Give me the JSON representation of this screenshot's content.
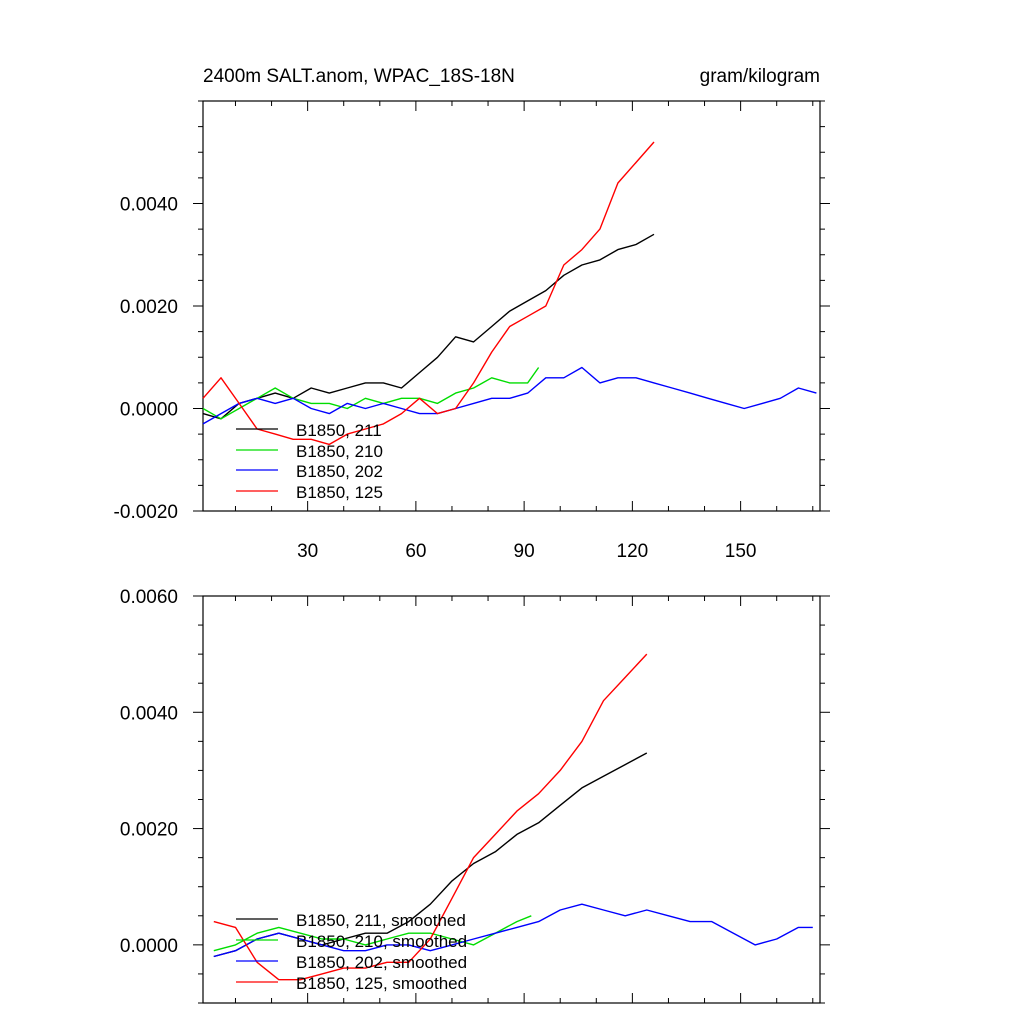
{
  "chart_data": [
    {
      "type": "line",
      "title": "2400m SALT.anom, WPAC_18S-18N",
      "units": "gram/kilogram",
      "xlim": [
        1,
        172
      ],
      "ylim": [
        -0.002,
        0.006
      ],
      "xticks": [
        30,
        60,
        90,
        120,
        150
      ],
      "yticks": [
        -0.002,
        0.0,
        0.002,
        0.004
      ],
      "ytick_labels": [
        "-0.0020",
        "0.0000",
        "0.0020",
        "0.0040"
      ],
      "legend": [
        "B1850, 211",
        "B1850, 210",
        "B1850, 202",
        "B1850, 125"
      ],
      "series": [
        {
          "name": "B1850, 211",
          "color": "#000000",
          "x_step": 5,
          "x": [
            1,
            6,
            11,
            16,
            21,
            26,
            31,
            36,
            41,
            46,
            51,
            56,
            61,
            66,
            71,
            76,
            81,
            86,
            91,
            96,
            101,
            106,
            111,
            116,
            121,
            126
          ],
          "values": [
            -0.0001,
            -0.0002,
            0.0001,
            0.0002,
            0.0003,
            0.0002,
            0.0004,
            0.0003,
            0.0004,
            0.0005,
            0.0005,
            0.0004,
            0.0007,
            0.001,
            0.0014,
            0.0013,
            0.0016,
            0.0019,
            0.0021,
            0.0023,
            0.0026,
            0.0028,
            0.0029,
            0.0031,
            0.0032,
            0.0034
          ]
        },
        {
          "name": "B1850, 210",
          "color": "#00dd00",
          "x": [
            1,
            6,
            11,
            16,
            21,
            26,
            31,
            36,
            41,
            46,
            51,
            56,
            61,
            66,
            71,
            76,
            81,
            86,
            91,
            94
          ],
          "values": [
            0.0,
            -0.0002,
            0.0,
            0.0002,
            0.0004,
            0.0002,
            0.0001,
            0.0001,
            0.0,
            0.0002,
            0.0001,
            0.0002,
            0.0002,
            0.0001,
            0.0003,
            0.0004,
            0.0006,
            0.0005,
            0.0005,
            0.0008
          ]
        },
        {
          "name": "B1850, 202",
          "color": "#0000ff",
          "x": [
            1,
            6,
            11,
            16,
            21,
            26,
            31,
            36,
            41,
            46,
            51,
            56,
            61,
            66,
            71,
            76,
            81,
            86,
            91,
            96,
            101,
            106,
            111,
            116,
            121,
            126,
            131,
            136,
            141,
            146,
            151,
            156,
            161,
            166,
            171
          ],
          "values": [
            -0.0003,
            -0.0001,
            0.0001,
            0.0002,
            0.0001,
            0.0002,
            0.0,
            -0.0001,
            0.0001,
            0.0,
            0.0001,
            0.0,
            -0.0001,
            -0.0001,
            0.0,
            0.0001,
            0.0002,
            0.0002,
            0.0003,
            0.0006,
            0.0006,
            0.0008,
            0.0005,
            0.0006,
            0.0006,
            0.0005,
            0.0004,
            0.0003,
            0.0002,
            0.0001,
            0.0,
            0.0001,
            0.0002,
            0.0004,
            0.0003
          ]
        },
        {
          "name": "B1850, 125",
          "color": "#ff0000",
          "x": [
            1,
            6,
            11,
            16,
            21,
            26,
            31,
            36,
            41,
            46,
            51,
            56,
            61,
            66,
            71,
            76,
            81,
            86,
            91,
            96,
            101,
            106,
            111,
            116,
            121,
            126
          ],
          "values": [
            0.0002,
            0.0006,
            0.0001,
            -0.0004,
            -0.0005,
            -0.0006,
            -0.0006,
            -0.0007,
            -0.0005,
            -0.0004,
            -0.0003,
            -0.0001,
            0.0002,
            -0.0001,
            0.0,
            0.0005,
            0.0011,
            0.0016,
            0.0018,
            0.002,
            0.0028,
            0.0031,
            0.0035,
            0.0044,
            0.0048,
            0.0052
          ]
        }
      ]
    },
    {
      "type": "line",
      "title": "",
      "xlim": [
        1,
        172
      ],
      "ylim": [
        -0.001,
        0.006
      ],
      "xticks": [
        30,
        60,
        90,
        120,
        150
      ],
      "yticks": [
        0.0,
        0.002,
        0.004,
        0.006
      ],
      "ytick_labels": [
        "0.0000",
        "0.0020",
        "0.0040",
        "0.0060"
      ],
      "legend": [
        "B1850, 211, smoothed",
        "B1850, 210, smoothed",
        "B1850, 202, smoothed",
        "B1850, 125, smoothed"
      ],
      "series": [
        {
          "name": "B1850, 211, smoothed",
          "color": "#000000",
          "x": [
            4,
            10,
            16,
            22,
            28,
            34,
            40,
            46,
            52,
            58,
            64,
            70,
            76,
            82,
            88,
            94,
            100,
            106,
            112,
            118,
            124
          ],
          "values": [
            -0.0002,
            -0.0001,
            0.0001,
            0.0002,
            0.0001,
            0.0,
            0.0001,
            0.0002,
            0.0002,
            0.0004,
            0.0007,
            0.0011,
            0.0014,
            0.0016,
            0.0019,
            0.0021,
            0.0024,
            0.0027,
            0.0029,
            0.0031,
            0.0033
          ]
        },
        {
          "name": "B1850, 210, smoothed",
          "color": "#00dd00",
          "x": [
            4,
            10,
            16,
            22,
            28,
            34,
            40,
            46,
            52,
            58,
            64,
            70,
            76,
            82,
            88,
            92
          ],
          "values": [
            -0.0001,
            0.0,
            0.0002,
            0.0003,
            0.0002,
            0.0001,
            0.0001,
            0.0,
            0.0001,
            0.0002,
            0.0002,
            0.0001,
            0.0,
            0.0002,
            0.0004,
            0.0005
          ]
        },
        {
          "name": "B1850, 202, smoothed",
          "color": "#0000ff",
          "x": [
            4,
            10,
            16,
            22,
            28,
            34,
            40,
            46,
            52,
            58,
            64,
            70,
            76,
            82,
            88,
            94,
            100,
            106,
            112,
            118,
            124,
            130,
            136,
            142,
            148,
            154,
            160,
            166,
            170
          ],
          "values": [
            -0.0002,
            -0.0001,
            0.0001,
            0.0002,
            0.0001,
            0.0,
            -0.0001,
            -0.0001,
            0.0,
            0.0,
            -0.0001,
            0.0,
            0.0001,
            0.0002,
            0.0003,
            0.0004,
            0.0006,
            0.0007,
            0.0006,
            0.0005,
            0.0006,
            0.0005,
            0.0004,
            0.0004,
            0.0002,
            0.0,
            0.0001,
            0.0003,
            0.0003
          ]
        },
        {
          "name": "B1850, 125, smoothed",
          "color": "#ff0000",
          "x": [
            4,
            10,
            16,
            22,
            28,
            34,
            40,
            46,
            52,
            58,
            64,
            70,
            76,
            82,
            88,
            94,
            100,
            106,
            112,
            118,
            124
          ],
          "values": [
            0.0004,
            0.0003,
            -0.0003,
            -0.0006,
            -0.0006,
            -0.0005,
            -0.0004,
            -0.0004,
            -0.0003,
            -0.0003,
            0.0001,
            0.0008,
            0.0015,
            0.0019,
            0.0023,
            0.0026,
            0.003,
            0.0035,
            0.0042,
            0.0046,
            0.005
          ]
        }
      ]
    }
  ]
}
